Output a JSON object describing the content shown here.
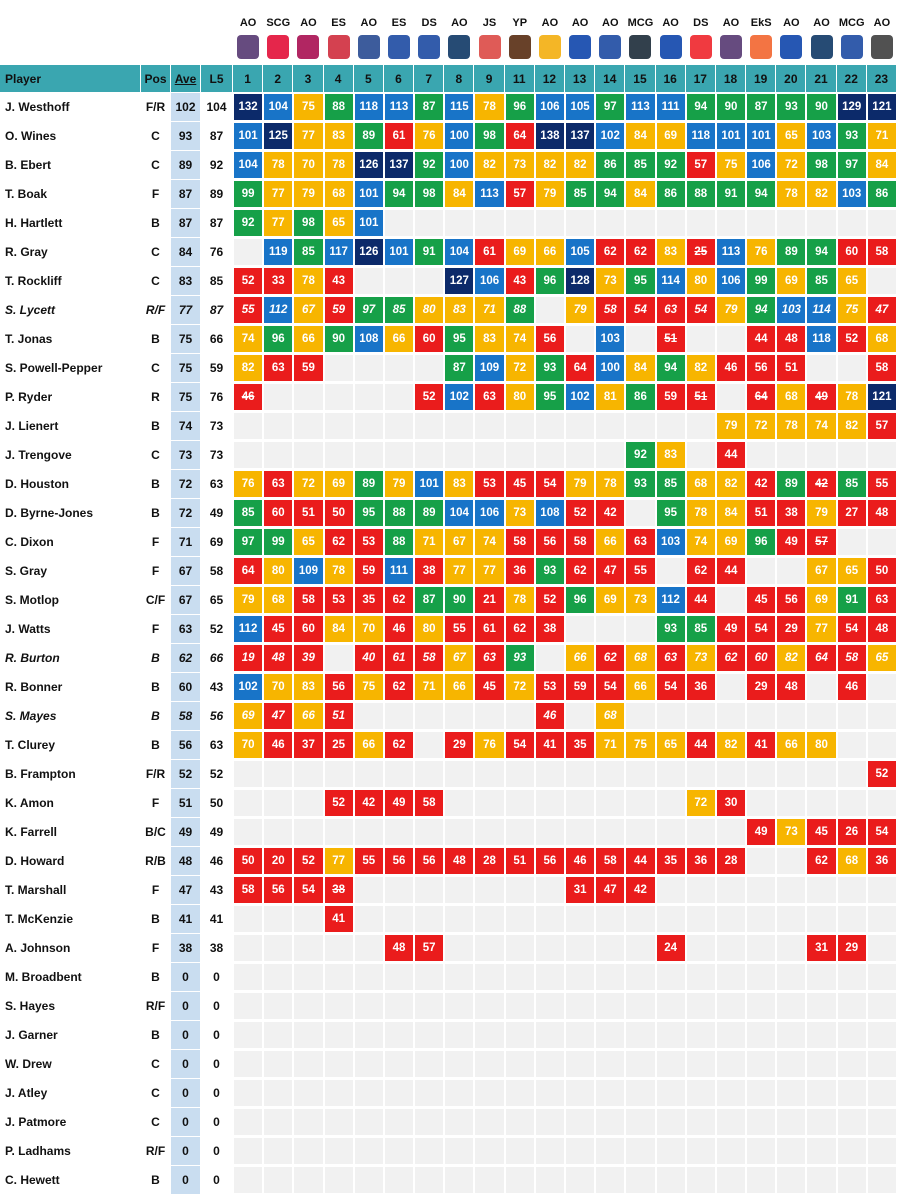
{
  "columns": [
    "Player",
    "Pos",
    "Ave",
    "L5"
  ],
  "venues": [
    "AO",
    "SCG",
    "AO",
    "ES",
    "AO",
    "ES",
    "DS",
    "AO",
    "JS",
    "YP",
    "AO",
    "AO",
    "AO",
    "MCG",
    "AO",
    "DS",
    "AO",
    "EkS",
    "AO",
    "AO",
    "MCG",
    "AO"
  ],
  "rounds": [
    1,
    2,
    3,
    4,
    5,
    6,
    7,
    8,
    9,
    11,
    12,
    13,
    14,
    15,
    16,
    17,
    18,
    19,
    20,
    21,
    22,
    23
  ],
  "rows": [
    {
      "player": "J. Westhoff",
      "pos": "F/R",
      "ave": 102,
      "l5": 104,
      "scores": [
        132,
        104,
        75,
        88,
        118,
        113,
        87,
        115,
        78,
        96,
        106,
        105,
        97,
        113,
        111,
        94,
        90,
        87,
        93,
        90,
        129,
        121
      ]
    },
    {
      "player": "O. Wines",
      "pos": "C",
      "ave": 93,
      "l5": 87,
      "scores": [
        101,
        125,
        77,
        83,
        89,
        61,
        76,
        100,
        98,
        64,
        138,
        137,
        102,
        84,
        69,
        118,
        101,
        101,
        65,
        103,
        93,
        71
      ]
    },
    {
      "player": "B. Ebert",
      "pos": "C",
      "ave": 89,
      "l5": 92,
      "scores": [
        104,
        78,
        70,
        78,
        126,
        137,
        92,
        100,
        82,
        73,
        82,
        82,
        86,
        85,
        92,
        57,
        75,
        106,
        72,
        98,
        97,
        84
      ]
    },
    {
      "player": "T. Boak",
      "pos": "F",
      "ave": 87,
      "l5": 89,
      "scores": [
        99,
        77,
        79,
        68,
        101,
        94,
        98,
        84,
        113,
        57,
        79,
        85,
        94,
        84,
        86,
        88,
        91,
        94,
        78,
        82,
        103,
        86
      ]
    },
    {
      "player": "H. Hartlett",
      "pos": "B",
      "ave": 87,
      "l5": 87,
      "scores": [
        92,
        77,
        98,
        65,
        101,
        null,
        null,
        null,
        null,
        null,
        null,
        null,
        null,
        null,
        null,
        null,
        null,
        null,
        null,
        null,
        null,
        null
      ]
    },
    {
      "player": "R. Gray",
      "pos": "C",
      "ave": 84,
      "l5": 76,
      "scores": [
        null,
        119,
        85,
        117,
        126,
        101,
        91,
        104,
        61,
        69,
        66,
        105,
        62,
        62,
        83,
        {
          "value": 25,
          "struck": true
        },
        113,
        76,
        89,
        94,
        60,
        58
      ]
    },
    {
      "player": "T. Rockliff",
      "pos": "C",
      "ave": 83,
      "l5": 85,
      "scores": [
        52,
        33,
        78,
        43,
        null,
        null,
        null,
        127,
        106,
        43,
        96,
        128,
        73,
        95,
        114,
        80,
        106,
        99,
        69,
        85,
        65,
        null
      ]
    },
    {
      "player": "S. Lycett",
      "pos": "R/F",
      "ave": 77,
      "l5": 87,
      "italic": true,
      "scores": [
        55,
        112,
        67,
        59,
        97,
        85,
        80,
        83,
        71,
        88,
        null,
        79,
        58,
        54,
        63,
        54,
        79,
        94,
        103,
        114,
        75,
        47
      ]
    },
    {
      "player": "T. Jonas",
      "pos": "B",
      "ave": 75,
      "l5": 66,
      "scores": [
        74,
        96,
        66,
        90,
        108,
        66,
        60,
        95,
        83,
        74,
        56,
        null,
        103,
        null,
        {
          "value": 51,
          "struck": true
        },
        null,
        null,
        44,
        48,
        118,
        52,
        68
      ]
    },
    {
      "player": "S. Powell-Pepper",
      "pos": "C",
      "ave": 75,
      "l5": 59,
      "scores": [
        82,
        63,
        59,
        null,
        null,
        null,
        null,
        87,
        109,
        72,
        93,
        64,
        100,
        84,
        94,
        82,
        46,
        56,
        51,
        null,
        null,
        58
      ]
    },
    {
      "player": "P. Ryder",
      "pos": "R",
      "ave": 75,
      "l5": 76,
      "scores": [
        {
          "value": 46,
          "struck": true
        },
        null,
        null,
        null,
        null,
        null,
        52,
        102,
        63,
        80,
        95,
        102,
        81,
        86,
        59,
        {
          "value": 51,
          "struck": true
        },
        null,
        {
          "value": 64,
          "struck": true
        },
        68,
        {
          "value": 49,
          "struck": true
        },
        78,
        121
      ]
    },
    {
      "player": "J. Lienert",
      "pos": "B",
      "ave": 74,
      "l5": 73,
      "scores": [
        null,
        null,
        null,
        null,
        null,
        null,
        null,
        null,
        null,
        null,
        null,
        null,
        null,
        null,
        null,
        null,
        79,
        72,
        78,
        74,
        82,
        57
      ]
    },
    {
      "player": "J. Trengove",
      "pos": "C",
      "ave": 73,
      "l5": 73,
      "scores": [
        null,
        null,
        null,
        null,
        null,
        null,
        null,
        null,
        null,
        null,
        null,
        null,
        null,
        92,
        83,
        null,
        44,
        null,
        null,
        null,
        null,
        null
      ]
    },
    {
      "player": "D. Houston",
      "pos": "B",
      "ave": 72,
      "l5": 63,
      "scores": [
        76,
        63,
        72,
        69,
        89,
        79,
        101,
        83,
        53,
        45,
        54,
        79,
        78,
        93,
        85,
        68,
        82,
        42,
        89,
        {
          "value": 42,
          "struck": true
        },
        85,
        55
      ]
    },
    {
      "player": "D. Byrne-Jones",
      "pos": "B",
      "ave": 72,
      "l5": 49,
      "scores": [
        85,
        60,
        51,
        50,
        95,
        88,
        89,
        104,
        106,
        73,
        108,
        52,
        42,
        null,
        95,
        78,
        84,
        51,
        38,
        79,
        27,
        48
      ]
    },
    {
      "player": "C. Dixon",
      "pos": "F",
      "ave": 71,
      "l5": 69,
      "scores": [
        97,
        99,
        65,
        62,
        53,
        88,
        71,
        67,
        74,
        58,
        56,
        58,
        66,
        63,
        103,
        74,
        69,
        96,
        49,
        {
          "value": 57,
          "struck": true
        },
        null,
        null
      ]
    },
    {
      "player": "S. Gray",
      "pos": "F",
      "ave": 67,
      "l5": 58,
      "scores": [
        64,
        80,
        109,
        78,
        59,
        111,
        38,
        77,
        77,
        36,
        93,
        62,
        47,
        55,
        null,
        62,
        44,
        null,
        null,
        67,
        65,
        50
      ]
    },
    {
      "player": "S. Motlop",
      "pos": "C/F",
      "ave": 67,
      "l5": 65,
      "scores": [
        79,
        68,
        58,
        53,
        35,
        62,
        87,
        90,
        21,
        78,
        52,
        96,
        69,
        73,
        112,
        44,
        null,
        45,
        56,
        69,
        91,
        63
      ]
    },
    {
      "player": "J. Watts",
      "pos": "F",
      "ave": 63,
      "l5": 52,
      "scores": [
        112,
        45,
        60,
        84,
        70,
        46,
        80,
        55,
        61,
        62,
        38,
        null,
        null,
        null,
        93,
        85,
        49,
        54,
        29,
        77,
        54,
        48
      ]
    },
    {
      "player": "R. Burton",
      "pos": "B",
      "ave": 62,
      "l5": 66,
      "italic": true,
      "scores": [
        19,
        48,
        39,
        null,
        40,
        61,
        58,
        67,
        63,
        93,
        null,
        66,
        62,
        68,
        63,
        73,
        62,
        60,
        82,
        64,
        58,
        65
      ]
    },
    {
      "player": "R. Bonner",
      "pos": "B",
      "ave": 60,
      "l5": 43,
      "scores": [
        102,
        70,
        83,
        56,
        75,
        62,
        71,
        66,
        45,
        72,
        53,
        59,
        54,
        66,
        54,
        36,
        null,
        29,
        48,
        null,
        46,
        null
      ]
    },
    {
      "player": "S. Mayes",
      "pos": "B",
      "ave": 58,
      "l5": 56,
      "italic": true,
      "scores": [
        69,
        47,
        66,
        51,
        null,
        null,
        null,
        null,
        null,
        null,
        46,
        null,
        68,
        null,
        null,
        null,
        null,
        null,
        null,
        null,
        null,
        null
      ]
    },
    {
      "player": "T. Clurey",
      "pos": "B",
      "ave": 56,
      "l5": 63,
      "scores": [
        70,
        46,
        37,
        25,
        66,
        62,
        null,
        29,
        76,
        54,
        41,
        35,
        71,
        75,
        65,
        44,
        82,
        41,
        66,
        80,
        null,
        null
      ]
    },
    {
      "player": "B. Frampton",
      "pos": "F/R",
      "ave": 52,
      "l5": 52,
      "scores": [
        null,
        null,
        null,
        null,
        null,
        null,
        null,
        null,
        null,
        null,
        null,
        null,
        null,
        null,
        null,
        null,
        null,
        null,
        null,
        null,
        null,
        52
      ]
    },
    {
      "player": "K. Amon",
      "pos": "F",
      "ave": 51,
      "l5": 50,
      "scores": [
        null,
        null,
        null,
        52,
        42,
        49,
        58,
        null,
        null,
        null,
        null,
        null,
        null,
        null,
        null,
        72,
        30,
        null,
        null,
        null,
        null,
        null
      ]
    },
    {
      "player": "K. Farrell",
      "pos": "B/C",
      "ave": 49,
      "l5": 49,
      "scores": [
        null,
        null,
        null,
        null,
        null,
        null,
        null,
        null,
        null,
        null,
        null,
        null,
        null,
        null,
        null,
        null,
        null,
        49,
        73,
        45,
        26,
        54
      ]
    },
    {
      "player": "D. Howard",
      "pos": "R/B",
      "ave": 48,
      "l5": 46,
      "scores": [
        50,
        20,
        52,
        77,
        55,
        56,
        56,
        48,
        28,
        51,
        56,
        46,
        58,
        44,
        35,
        36,
        28,
        null,
        null,
        62,
        68,
        36
      ]
    },
    {
      "player": "T. Marshall",
      "pos": "F",
      "ave": 47,
      "l5": 43,
      "scores": [
        58,
        56,
        54,
        {
          "value": 38,
          "struck": true
        },
        null,
        null,
        null,
        null,
        null,
        null,
        null,
        31,
        47,
        42,
        null,
        null,
        null,
        null,
        null,
        null,
        null,
        null
      ]
    },
    {
      "player": "T. McKenzie",
      "pos": "B",
      "ave": 41,
      "l5": 41,
      "scores": [
        null,
        null,
        null,
        41,
        null,
        null,
        null,
        null,
        null,
        null,
        null,
        null,
        null,
        null,
        null,
        null,
        null,
        null,
        null,
        null,
        null,
        null
      ]
    },
    {
      "player": "A. Johnson",
      "pos": "F",
      "ave": 38,
      "l5": 38,
      "scores": [
        null,
        null,
        null,
        null,
        null,
        48,
        57,
        null,
        null,
        null,
        null,
        null,
        null,
        null,
        24,
        null,
        null,
        null,
        null,
        31,
        29,
        null
      ]
    },
    {
      "player": "M. Broadbent",
      "pos": "B",
      "ave": 0,
      "l5": 0,
      "scores": [
        null,
        null,
        null,
        null,
        null,
        null,
        null,
        null,
        null,
        null,
        null,
        null,
        null,
        null,
        null,
        null,
        null,
        null,
        null,
        null,
        null,
        null
      ]
    },
    {
      "player": "S. Hayes",
      "pos": "R/F",
      "ave": 0,
      "l5": 0,
      "scores": [
        null,
        null,
        null,
        null,
        null,
        null,
        null,
        null,
        null,
        null,
        null,
        null,
        null,
        null,
        null,
        null,
        null,
        null,
        null,
        null,
        null,
        null
      ]
    },
    {
      "player": "J. Garner",
      "pos": "B",
      "ave": 0,
      "l5": 0,
      "scores": [
        null,
        null,
        null,
        null,
        null,
        null,
        null,
        null,
        null,
        null,
        null,
        null,
        null,
        null,
        null,
        null,
        null,
        null,
        null,
        null,
        null,
        null
      ]
    },
    {
      "player": "W. Drew",
      "pos": "C",
      "ave": 0,
      "l5": 0,
      "scores": [
        null,
        null,
        null,
        null,
        null,
        null,
        null,
        null,
        null,
        null,
        null,
        null,
        null,
        null,
        null,
        null,
        null,
        null,
        null,
        null,
        null,
        null
      ]
    },
    {
      "player": "J. Atley",
      "pos": "C",
      "ave": 0,
      "l5": 0,
      "scores": [
        null,
        null,
        null,
        null,
        null,
        null,
        null,
        null,
        null,
        null,
        null,
        null,
        null,
        null,
        null,
        null,
        null,
        null,
        null,
        null,
        null,
        null
      ]
    },
    {
      "player": "J. Patmore",
      "pos": "C",
      "ave": 0,
      "l5": 0,
      "scores": [
        null,
        null,
        null,
        null,
        null,
        null,
        null,
        null,
        null,
        null,
        null,
        null,
        null,
        null,
        null,
        null,
        null,
        null,
        null,
        null,
        null,
        null
      ]
    },
    {
      "player": "P. Ladhams",
      "pos": "R/F",
      "ave": 0,
      "l5": 0,
      "scores": [
        null,
        null,
        null,
        null,
        null,
        null,
        null,
        null,
        null,
        null,
        null,
        null,
        null,
        null,
        null,
        null,
        null,
        null,
        null,
        null,
        null,
        null
      ]
    },
    {
      "player": "C. Hewett",
      "pos": "B",
      "ave": 0,
      "l5": 0,
      "scores": [
        null,
        null,
        null,
        null,
        null,
        null,
        null,
        null,
        null,
        null,
        null,
        null,
        null,
        null,
        null,
        null,
        null,
        null,
        null,
        null,
        null,
        null
      ]
    }
  ]
}
